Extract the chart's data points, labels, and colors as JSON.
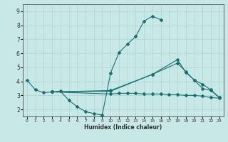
{
  "xlabel": "Humidex (Indice chaleur)",
  "bg_color": "#c8e8e8",
  "grid_color": "#b0d8d8",
  "line_color": "#1a7070",
  "xlim": [
    -0.5,
    23.5
  ],
  "ylim": [
    1.5,
    9.5
  ],
  "xticks": [
    0,
    1,
    2,
    3,
    4,
    5,
    6,
    7,
    8,
    9,
    10,
    11,
    12,
    13,
    14,
    15,
    16,
    17,
    18,
    19,
    20,
    21,
    22,
    23
  ],
  "yticks": [
    2,
    3,
    4,
    5,
    6,
    7,
    8,
    9
  ],
  "lines": [
    {
      "x": [
        0,
        1,
        2,
        3,
        4,
        5,
        6,
        7,
        8,
        9,
        10,
        11,
        12,
        13,
        14,
        15,
        16
      ],
      "y": [
        4.1,
        3.4,
        3.2,
        3.25,
        3.3,
        2.65,
        2.2,
        1.85,
        1.7,
        1.6,
        4.6,
        6.05,
        6.65,
        7.2,
        8.3,
        8.65,
        8.4
      ]
    },
    {
      "x": [
        3,
        10,
        11,
        12,
        13,
        14,
        15,
        16,
        17,
        18,
        19,
        20,
        21,
        22,
        23
      ],
      "y": [
        3.25,
        3.1,
        3.15,
        3.15,
        3.15,
        3.1,
        3.1,
        3.1,
        3.05,
        3.05,
        3.0,
        3.0,
        2.95,
        2.85,
        2.8
      ]
    },
    {
      "x": [
        3,
        10,
        15,
        18,
        19,
        20,
        21,
        22,
        23
      ],
      "y": [
        3.25,
        3.3,
        4.5,
        5.55,
        4.65,
        4.1,
        3.5,
        3.35,
        2.85
      ]
    },
    {
      "x": [
        3,
        10,
        15,
        18,
        19,
        20,
        21,
        22,
        23
      ],
      "y": [
        3.25,
        3.35,
        4.5,
        5.3,
        4.7,
        4.1,
        3.8,
        3.4,
        2.85
      ]
    }
  ]
}
